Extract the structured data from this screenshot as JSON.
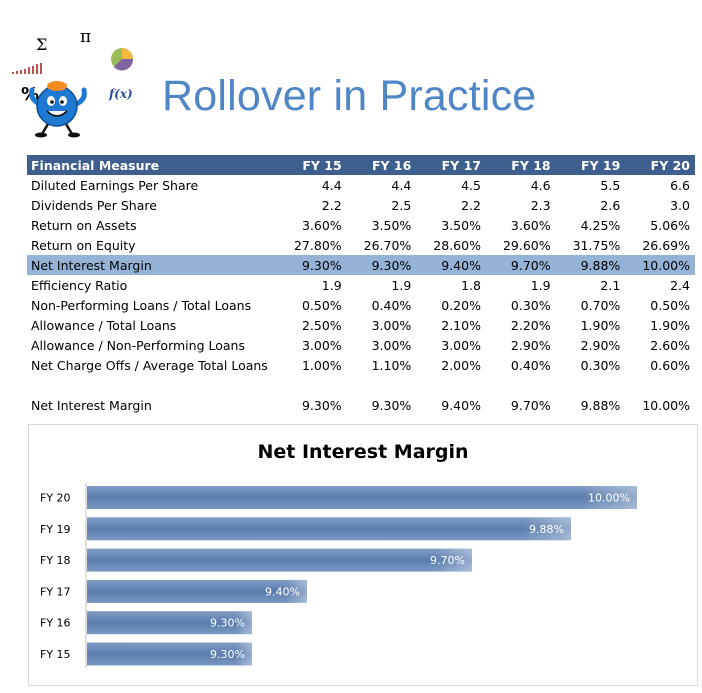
{
  "page": {
    "title": "Rollover in Practice"
  },
  "logo": {
    "symbols": [
      "Σ",
      "π",
      "%",
      "f(x)"
    ],
    "icons": [
      "sigma-icon",
      "pi-icon",
      "percent-icon",
      "pie-chart-icon",
      "bar-chart-icon",
      "cartoon-character-icon"
    ]
  },
  "table": {
    "header": [
      "Financial Measure",
      "FY 15",
      "FY 16",
      "FY 17",
      "FY 18",
      "FY 19",
      "FY 20"
    ],
    "rows": [
      {
        "label": "Diluted Earnings Per Share",
        "values": [
          "4.4",
          "4.4",
          "4.5",
          "4.6",
          "5.5",
          "6.6"
        ]
      },
      {
        "label": "Dividends Per Share",
        "values": [
          "2.2",
          "2.5",
          "2.2",
          "2.3",
          "2.6",
          "3.0"
        ]
      },
      {
        "label": "Return on Assets",
        "values": [
          "3.60%",
          "3.50%",
          "3.50%",
          "3.60%",
          "4.25%",
          "5.06%"
        ]
      },
      {
        "label": "Return on Equity",
        "values": [
          "27.80%",
          "26.70%",
          "28.60%",
          "29.60%",
          "31.75%",
          "26.69%"
        ]
      },
      {
        "label": "Net Interest Margin",
        "values": [
          "9.30%",
          "9.30%",
          "9.40%",
          "9.70%",
          "9.88%",
          "10.00%"
        ]
      },
      {
        "label": "Efficiency Ratio",
        "values": [
          "1.9",
          "1.9",
          "1.8",
          "1.9",
          "2.1",
          "2.4"
        ]
      },
      {
        "label": "Non-Performing Loans / Total Loans",
        "values": [
          "0.50%",
          "0.40%",
          "0.20%",
          "0.30%",
          "0.70%",
          "0.50%"
        ]
      },
      {
        "label": "Allowance / Total Loans",
        "values": [
          "2.50%",
          "3.00%",
          "2.10%",
          "2.20%",
          "1.90%",
          "1.90%"
        ]
      },
      {
        "label": "Allowance / Non-Performing Loans",
        "values": [
          "3.00%",
          "3.00%",
          "3.00%",
          "2.90%",
          "2.90%",
          "2.60%"
        ]
      },
      {
        "label": "Net Charge Offs / Average Total Loans",
        "values": [
          "1.00%",
          "1.10%",
          "2.00%",
          "0.40%",
          "0.30%",
          "0.60%"
        ]
      }
    ],
    "selected_row": 4,
    "summary": {
      "label": "Net Interest Margin",
      "values": [
        "9.30%",
        "9.30%",
        "9.40%",
        "9.70%",
        "9.88%",
        "10.00%"
      ]
    }
  },
  "chart_data": {
    "type": "bar",
    "orientation": "horizontal",
    "title": "Net Interest Margin",
    "categories": [
      "FY 20",
      "FY 19",
      "FY 18",
      "FY 17",
      "FY 16",
      "FY 15"
    ],
    "values": [
      10.0,
      9.88,
      9.7,
      9.4,
      9.3,
      9.3
    ],
    "labels": [
      "10.00%",
      "9.88%",
      "9.70%",
      "9.40%",
      "9.30%",
      "9.30%"
    ],
    "xlim": [
      9.0,
      10.06
    ],
    "grid": false,
    "legend": "none",
    "xlabel": "",
    "ylabel": "",
    "bar_color": "#5d7fae"
  }
}
